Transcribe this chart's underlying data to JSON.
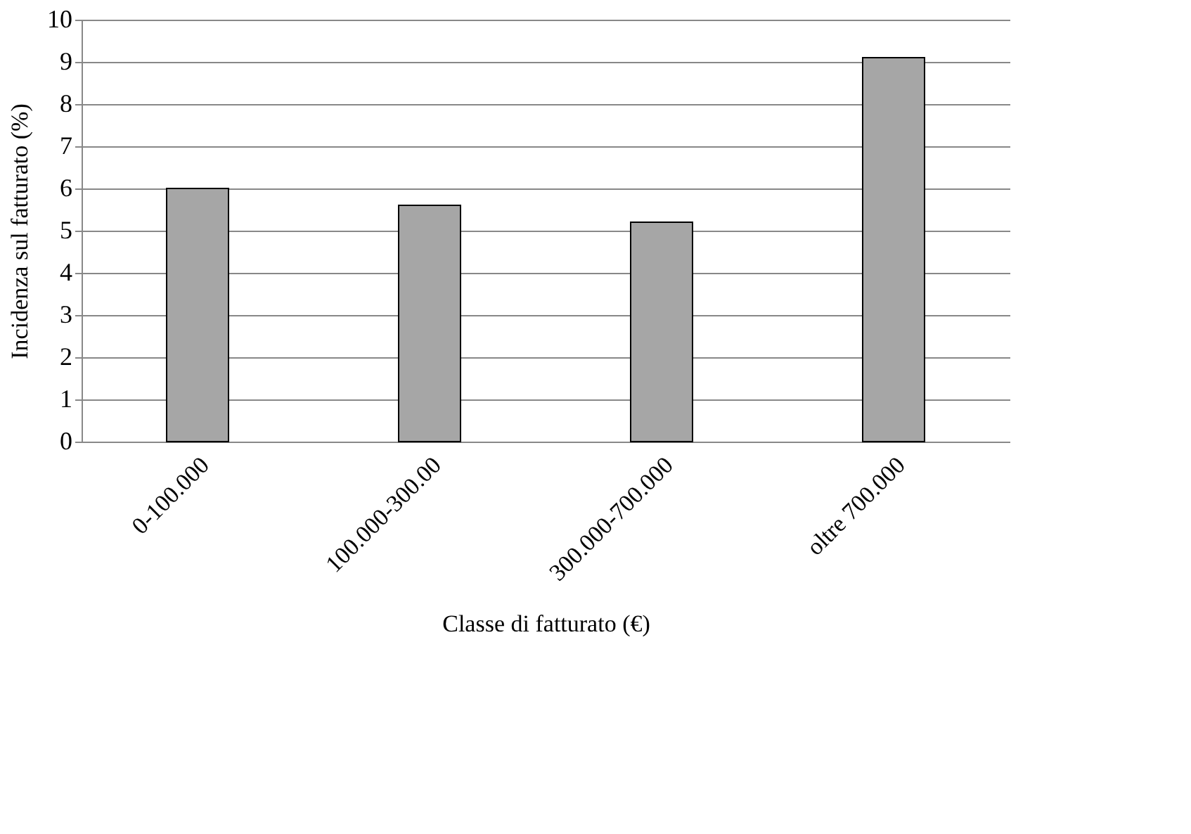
{
  "chart_data": {
    "type": "bar",
    "xlabel": "Classe di fatturato (€)",
    "ylabel": "Incidenza sul fatturato (%)",
    "categories": [
      "0-100.000",
      "100.000-300.00",
      "300.000-700.000",
      "oltre 700.000"
    ],
    "values": [
      6.0,
      5.6,
      5.2,
      9.1
    ],
    "color": "#a6a6a6",
    "ylim": [
      0,
      10
    ],
    "yticks": [
      0,
      1,
      2,
      3,
      4,
      5,
      6,
      7,
      8,
      9,
      10
    ],
    "grid": "y"
  }
}
